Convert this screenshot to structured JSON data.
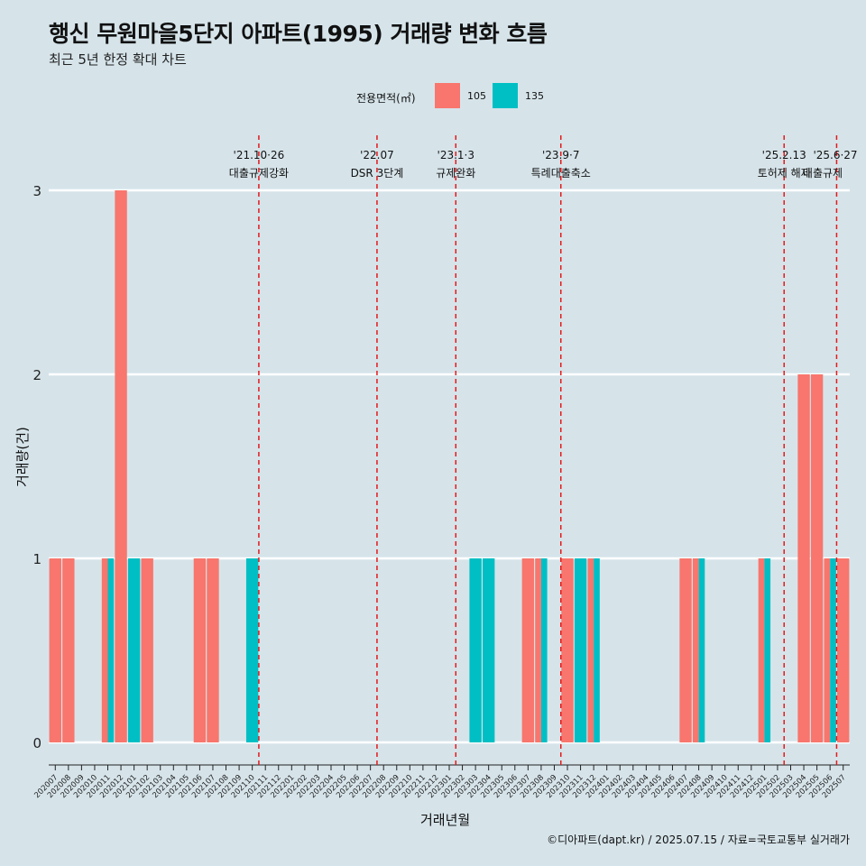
{
  "title": "행신 무원마을5단지 아파트(1995) 거래량 변화 흐름",
  "subtitle": "최근 5년 한정 확대 차트",
  "caption": "©디아파트(dapt.kr) / 2025.07.15 / 자료=국토교통부 실거래가",
  "legend": {
    "title": "전용면적(㎡)",
    "items": [
      {
        "label": "105",
        "color": "#f8766d"
      },
      {
        "label": "135",
        "color": "#00bfc4"
      }
    ]
  },
  "chart_data": {
    "type": "bar",
    "stacking": "dodge",
    "xlabel": "거래년월",
    "ylabel": "거래량(건)",
    "ylim": [
      0,
      3
    ],
    "yticks": [
      0,
      1,
      2,
      3
    ],
    "grid": "horizontal",
    "categories": [
      "202007",
      "202008",
      "202009",
      "202010",
      "202011",
      "202012",
      "202101",
      "202102",
      "202103",
      "202104",
      "202105",
      "202106",
      "202107",
      "202108",
      "202109",
      "202110",
      "202111",
      "202112",
      "202201",
      "202202",
      "202203",
      "202204",
      "202205",
      "202206",
      "202207",
      "202208",
      "202209",
      "202210",
      "202211",
      "202212",
      "202301",
      "202302",
      "202303",
      "202304",
      "202305",
      "202306",
      "202307",
      "202308",
      "202309",
      "202310",
      "202311",
      "202312",
      "202401",
      "202402",
      "202403",
      "202404",
      "202405",
      "202406",
      "202407",
      "202408",
      "202409",
      "202410",
      "202411",
      "202412",
      "202501",
      "202502",
      "202503",
      "202504",
      "202505",
      "202506",
      "202507"
    ],
    "series": [
      {
        "name": "105",
        "color": "#f8766d",
        "values": [
          1,
          1,
          0,
          0,
          1,
          3,
          0,
          1,
          0,
          0,
          0,
          1,
          1,
          0,
          0,
          0,
          0,
          0,
          0,
          0,
          0,
          0,
          0,
          0,
          0,
          0,
          0,
          0,
          0,
          0,
          0,
          0,
          0,
          0,
          0,
          0,
          1,
          1,
          0,
          1,
          0,
          1,
          0,
          0,
          0,
          0,
          0,
          0,
          1,
          1,
          0,
          0,
          0,
          0,
          1,
          0,
          0,
          2,
          2,
          1,
          1
        ]
      },
      {
        "name": "135",
        "color": "#00bfc4",
        "values": [
          0,
          0,
          0,
          0,
          1,
          0,
          1,
          0,
          0,
          0,
          0,
          0,
          0,
          0,
          0,
          1,
          0,
          0,
          0,
          0,
          0,
          0,
          0,
          0,
          0,
          0,
          0,
          0,
          0,
          0,
          0,
          0,
          1,
          1,
          0,
          0,
          0,
          1,
          0,
          0,
          1,
          1,
          0,
          0,
          0,
          0,
          0,
          0,
          0,
          1,
          0,
          0,
          0,
          0,
          1,
          0,
          0,
          0,
          0,
          1,
          0
        ]
      }
    ],
    "annotations": [
      {
        "month": "202110",
        "date": "'21.10·26",
        "label": "대출규제강화"
      },
      {
        "month": "202207",
        "date": "'22.07",
        "label": "DSR 3단계"
      },
      {
        "month": "202301",
        "date": "'23.1·3",
        "label": "규제완화"
      },
      {
        "month": "202309",
        "date": "'23.9·7",
        "label": "특례대출축소"
      },
      {
        "month": "202502",
        "date": "'25.2.13",
        "label": "토허제 해제"
      },
      {
        "month": "202506",
        "date": "'25.6·27",
        "label": "대출규제"
      }
    ],
    "annotation_style": {
      "line_color": "#e31a1c",
      "dash": "dashed"
    }
  }
}
